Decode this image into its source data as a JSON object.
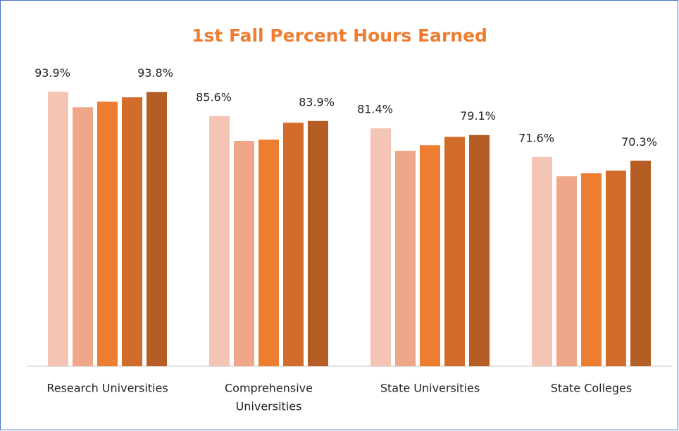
{
  "chart_data": {
    "type": "bar",
    "title": "1st Fall Percent Hours Earned",
    "categories": [
      "Research Universities",
      [
        "Comprehensive",
        "Universities"
      ],
      "State Universities",
      "State Colleges"
    ],
    "series": [
      {
        "color": "#f4c5b4",
        "values": [
          93.9,
          85.6,
          81.4,
          71.6
        ],
        "value_labels": [
          "93.9%",
          "85.6%",
          "81.4%",
          "71.6%"
        ]
      },
      {
        "color": "#f0a688",
        "values": [
          88.6,
          77.1,
          73.7,
          65.0
        ]
      },
      {
        "color": "#ed7d31",
        "values": [
          90.5,
          77.5,
          75.6,
          66.0
        ]
      },
      {
        "color": "#d26c2b",
        "values": [
          92.0,
          83.3,
          78.5,
          66.9
        ]
      },
      {
        "color": "#b45d24",
        "values": [
          93.8,
          83.9,
          79.1,
          70.3
        ],
        "value_labels": [
          "93.8%",
          "83.9%",
          "79.1%",
          "70.3%"
        ]
      }
    ],
    "ylim": [
      0,
      100
    ]
  }
}
